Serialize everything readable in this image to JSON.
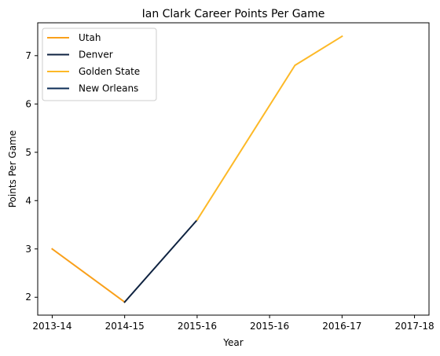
{
  "chart_data": {
    "type": "line",
    "title": "Ian Clark  Career Points Per Game",
    "xlabel": "Year",
    "ylabel": "Points Per Game",
    "categories": [
      "2013-14",
      "2014-15",
      "2015-16",
      "2015-16",
      "2016-17",
      "2017-18"
    ],
    "ylim": [
      1.63,
      7.68
    ],
    "yticks": [
      2,
      3,
      4,
      5,
      6,
      7
    ],
    "grid": false,
    "legend_position": "top-left",
    "series": [
      {
        "name": "Utah",
        "color": "#F9A01B",
        "points": [
          [
            0,
            3.0
          ],
          [
            1,
            1.9
          ]
        ]
      },
      {
        "name": "Denver",
        "color": "#0E2240",
        "points": [
          [
            1,
            1.9
          ],
          [
            2,
            3.6
          ]
        ]
      },
      {
        "name": "Golden State",
        "color": "#FDB927",
        "points": [
          [
            2,
            3.6
          ],
          [
            3,
            6.8
          ],
          [
            4,
            7.4
          ]
        ]
      },
      {
        "name": "New Orleans",
        "color": "#0C2C56",
        "points": []
      }
    ],
    "series_x_positions": {
      "Utah": [
        0,
        1
      ],
      "Denver": [
        1,
        2
      ],
      "Golden State": [
        2,
        3.35,
        4.0
      ]
    }
  }
}
